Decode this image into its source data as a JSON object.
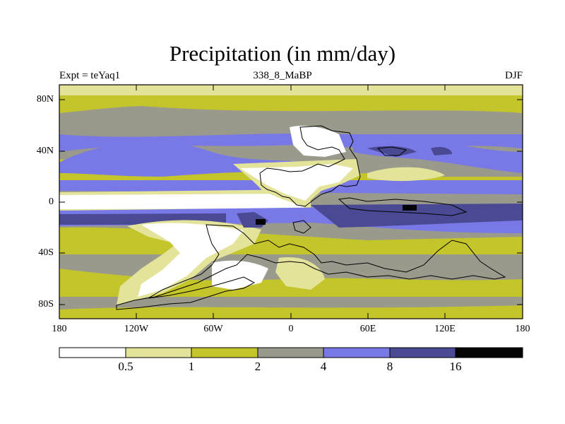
{
  "title": "Precipitation (in mm/day)",
  "subtitle_left": "Expt = teYaq1",
  "subtitle_center": "338_8_MaBP",
  "subtitle_right": "DJF",
  "lat_ticks": [
    "80N",
    "40N",
    "0",
    "40S",
    "80S"
  ],
  "lon_ticks": [
    "180",
    "120W",
    "60W",
    "0",
    "60E",
    "120E",
    "180"
  ],
  "colorbar": {
    "levels": [
      "0.5",
      "1",
      "2",
      "4",
      "8",
      "16"
    ],
    "colors": [
      "#ffffff",
      "#e3e39a",
      "#c4c42b",
      "#9a9a8c",
      "#7878e6",
      "#4a4a94",
      "#050505"
    ]
  }
}
